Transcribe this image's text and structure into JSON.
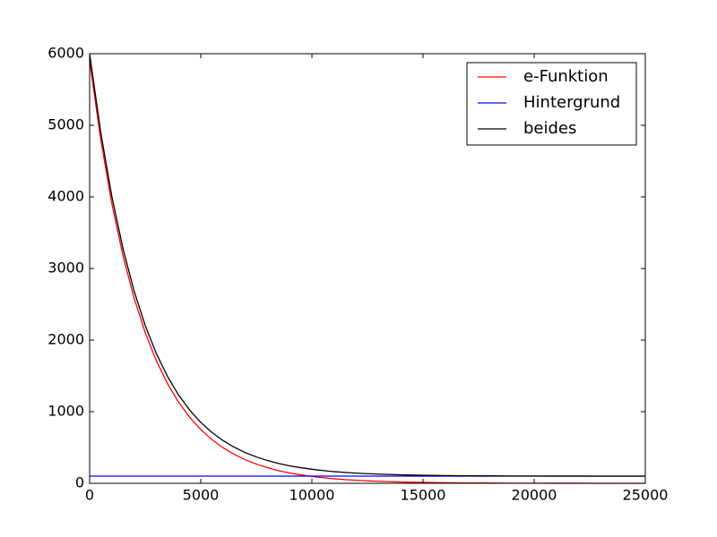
{
  "chart_data": {
    "type": "line",
    "x": [
      0,
      500,
      1000,
      1500,
      2000,
      2500,
      3000,
      3500,
      4000,
      4500,
      5000,
      5500,
      6000,
      6500,
      7000,
      7500,
      8000,
      8500,
      9000,
      9500,
      10000,
      10500,
      11000,
      11500,
      12000,
      12500,
      13000,
      13500,
      14000,
      14500,
      15000,
      16000,
      17000,
      18000,
      19000,
      20000,
      21000,
      22000,
      23000,
      24000,
      25000
    ],
    "series": [
      {
        "name": "e-Funktion",
        "color": "#ff0000",
        "values": [
          5900,
          4801,
          3906,
          3179,
          2587,
          2105,
          1713,
          1394,
          1134,
          923,
          751,
          611,
          497,
          405,
          329,
          268,
          218,
          177,
          144,
          118,
          96,
          78,
          63,
          52,
          42,
          34,
          28,
          23,
          18,
          15,
          12,
          8,
          5,
          4,
          2,
          2,
          1,
          1,
          0,
          0,
          0
        ]
      },
      {
        "name": "Hintergrund",
        "color": "#0000ff",
        "values": [
          100,
          100,
          100,
          100,
          100,
          100,
          100,
          100,
          100,
          100,
          100,
          100,
          100,
          100,
          100,
          100,
          100,
          100,
          100,
          100,
          100,
          100,
          100,
          100,
          100,
          100,
          100,
          100,
          100,
          100,
          100,
          100,
          100,
          100,
          100,
          100,
          100,
          100,
          100,
          100,
          100
        ]
      },
      {
        "name": "beides",
        "color": "#000000",
        "values": [
          6000,
          4901,
          4006,
          3279,
          2687,
          2205,
          1813,
          1494,
          1234,
          1023,
          851,
          711,
          597,
          505,
          429,
          368,
          318,
          277,
          244,
          218,
          196,
          178,
          163,
          152,
          142,
          134,
          128,
          123,
          118,
          115,
          112,
          108,
          105,
          104,
          102,
          102,
          101,
          101,
          100,
          100,
          100
        ]
      }
    ],
    "xlim": [
      0,
      25000
    ],
    "xticks": [
      0,
      5000,
      10000,
      15000,
      20000,
      25000
    ],
    "ylim": [
      0,
      6000
    ],
    "yticks": [
      0,
      1000,
      2000,
      3000,
      4000,
      5000,
      6000
    ],
    "legend": "upper right"
  }
}
